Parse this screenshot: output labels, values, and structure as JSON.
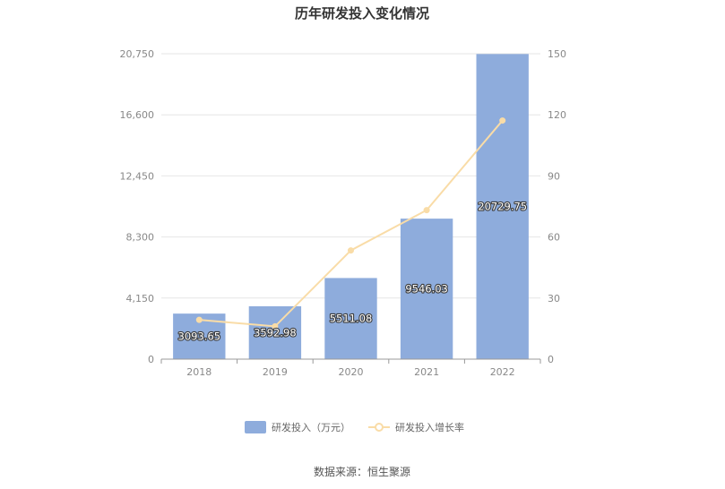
{
  "chart_data": {
    "type": "bar",
    "title": "历年研发投入变化情况",
    "categories": [
      "2018",
      "2019",
      "2020",
      "2021",
      "2022"
    ],
    "series": [
      {
        "name": "研发投入（万元）",
        "type": "bar",
        "axis": "left",
        "values": [
          3093.65,
          3592.98,
          5511.08,
          9546.03,
          20729.75
        ],
        "labels": [
          "3093.65",
          "3592.98",
          "5511.08",
          "9546.03",
          "20729.75"
        ],
        "color": "#8eacdc"
      },
      {
        "name": "研发投入增长率",
        "type": "line",
        "axis": "right",
        "values": [
          19.3,
          16.1,
          53.4,
          73.2,
          117.2
        ],
        "color": "#f9dca7"
      }
    ],
    "y_left": {
      "min": 0,
      "max": 20750,
      "ticks": [
        0,
        4150,
        8300,
        12450,
        16600,
        20750
      ],
      "tick_labels": [
        "0",
        "4,150",
        "8,300",
        "12,450",
        "16,600",
        "20,750"
      ]
    },
    "y_right": {
      "min": 0,
      "max": 150,
      "ticks": [
        0,
        30,
        60,
        90,
        120,
        150
      ],
      "tick_labels": [
        "0",
        "30",
        "60",
        "90",
        "120",
        "150"
      ]
    },
    "grid": true,
    "legend": "bottom-center"
  },
  "source": "数据来源：恒生聚源"
}
